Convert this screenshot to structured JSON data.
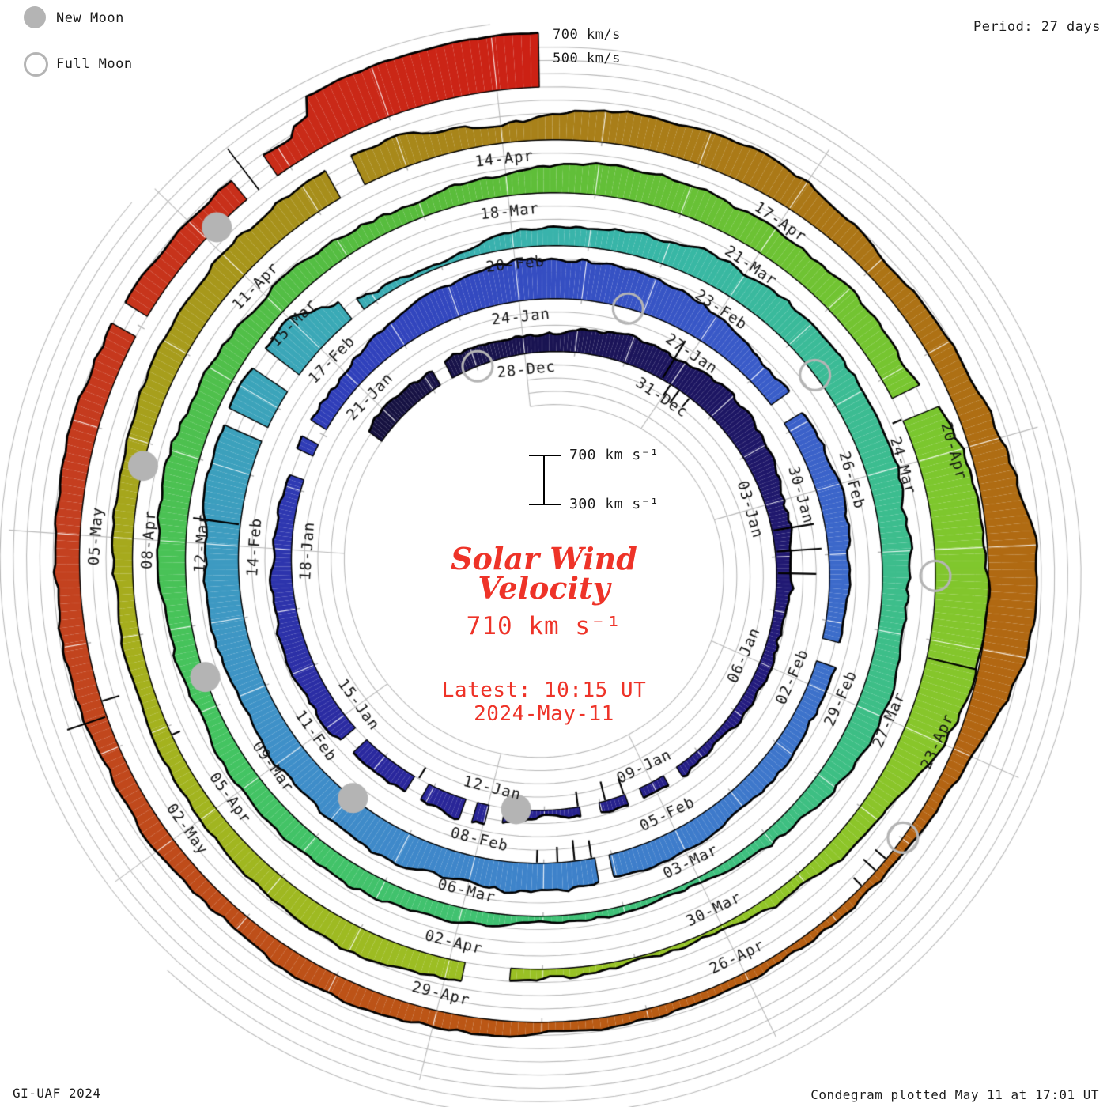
{
  "legend": {
    "new_moon": "New Moon",
    "full_moon": "Full Moon"
  },
  "header": {
    "period": "Period: 27 days",
    "outer_scale_700": "700 km/s",
    "outer_scale_500": "500 km/s"
  },
  "inner_scale": {
    "top": "700 km s⁻¹",
    "bottom": "300 km s⁻¹"
  },
  "center": {
    "title_line1": "Solar Wind",
    "title_line2": "Velocity",
    "current_value": "710 km s⁻¹",
    "latest_time": "Latest: 10:15 UT",
    "latest_date": "2024-May-11"
  },
  "footer": {
    "left": "GI-UAF 2024",
    "right": "Condegram plotted May 11 at 17:01 UT"
  },
  "colors": {
    "accent_red": "#ee3328",
    "moon_gray": "#b4b4b4",
    "grid_gray": "#b9b9b9",
    "tick_label": "#141414"
  },
  "chart_data": {
    "type": "polar-spiral-condegram",
    "title": "Solar Wind Velocity",
    "units": "km/s",
    "period_days": 27,
    "rotation_reference_date": "2023-12-28",
    "data_start": "2023-12-24T12:00",
    "data_end": "2024-05-11T10:15",
    "latest_value_kms": 710,
    "radial_scale": {
      "baseline_kms": 300,
      "top_kms": 700,
      "step_kms": 100
    },
    "angle_tick_step_days": 3,
    "angle_tick_labels": [
      "28-Dec",
      "31-Dec",
      "03-Jan",
      "06-Jan",
      "09-Jan",
      "12-Jan",
      "15-Jan",
      "18-Jan",
      "21-Jan",
      "24-Jan",
      "27-Jan",
      "30-Jan",
      "02-Feb",
      "05-Feb",
      "08-Feb",
      "11-Feb",
      "14-Feb",
      "17-Feb",
      "20-Feb",
      "23-Feb",
      "26-Feb",
      "29-Feb",
      "03-Mar",
      "06-Mar",
      "09-Mar",
      "12-Mar",
      "15-Mar",
      "18-Mar",
      "21-Mar",
      "24-Mar",
      "27-Mar",
      "30-Mar",
      "02-Apr",
      "05-Apr",
      "08-Apr",
      "11-Apr",
      "14-Apr",
      "17-Apr",
      "20-Apr",
      "23-Apr",
      "26-Apr",
      "29-Apr",
      "02-May",
      "05-May"
    ],
    "daily_velocity_kms": {
      "start_date": "2023-12-24",
      "values": [
        430,
        450,
        430,
        440,
        430,
        460,
        500,
        480,
        520,
        490,
        450,
        420,
        400,
        390,
        380,
        370,
        390,
        380,
        360,
        460,
        450,
        430,
        460,
        480,
        470,
        440,
        420,
        430,
        440,
        520,
        570,
        590,
        610,
        580,
        520,
        470,
        450,
        480,
        460,
        430,
        440,
        470,
        440,
        470,
        480,
        500,
        510,
        540,
        530,
        530,
        520,
        540,
        560,
        610,
        630,
        620,
        360,
        330,
        420,
        460,
        490,
        520,
        530,
        540,
        530,
        510,
        500,
        520,
        460,
        390,
        350,
        340,
        350,
        430,
        450,
        460,
        470,
        450,
        480,
        520,
        540,
        500,
        480,
        450,
        440,
        460,
        540,
        550,
        500,
        520,
        510,
        640,
        690,
        700,
        620,
        480,
        400,
        340,
        330,
        370,
        450,
        490,
        470,
        450,
        430,
        430,
        450,
        470,
        490,
        520,
        550,
        530,
        440,
        540,
        560,
        540,
        480,
        470,
        560,
        660,
        640,
        450,
        380,
        360,
        360,
        370,
        390,
        430,
        470,
        420,
        450,
        465,
        480,
        500,
        510,
        500,
        480,
        470,
        520,
        710
      ]
    },
    "data_gaps_days_from_ref": [
      [
        -1.8,
        -1.55
      ],
      [
        11.55,
        11.75
      ],
      [
        12.3,
        12.5
      ],
      [
        13.05,
        13.35
      ],
      [
        14.75,
        14.95
      ],
      [
        15.25,
        15.4
      ],
      [
        16.15,
        16.35
      ],
      [
        17.5,
        17.7
      ],
      [
        22.25,
        22.55
      ],
      [
        22.85,
        23.05
      ],
      [
        31.55,
        31.85
      ],
      [
        35.3,
        35.6
      ],
      [
        40.05,
        40.2
      ],
      [
        49.5,
        49.7
      ],
      [
        50.3,
        50.5
      ],
      [
        51.6,
        51.8
      ],
      [
        86.3,
        86.5
      ],
      [
        95.4,
        95.8
      ],
      [
        106.3,
        106.5
      ],
      [
        130.95,
        131.1
      ],
      [
        132.52,
        132.64
      ],
      [
        132.68,
        132.82
      ]
    ],
    "value_overrides_days_from_ref": [
      [
        132.64,
        132.68,
        690,
        705
      ],
      [
        133.2,
        133.35,
        545,
        565
      ],
      [
        133.35,
        135.427,
        695,
        712
      ]
    ],
    "spikes_up": [
      [
        2.8,
        640
      ],
      [
        6.5,
        620
      ],
      [
        6.9,
        650
      ],
      [
        7.3,
        600
      ],
      [
        48.3,
        660
      ],
      [
        89.2,
        690
      ],
      [
        127.3,
        615
      ]
    ],
    "spikes_down": [
      [
        3.0,
        200
      ],
      [
        3.2,
        180
      ],
      [
        3.45,
        210
      ],
      [
        12.55,
        170
      ],
      [
        12.9,
        150
      ],
      [
        13.4,
        180
      ],
      [
        16.3,
        200
      ],
      [
        40.3,
        160
      ],
      [
        40.55,
        140
      ],
      [
        40.8,
        180
      ],
      [
        41.1,
        200
      ],
      [
        86.5,
        220
      ],
      [
        99.9,
        230
      ],
      [
        118.25,
        190
      ],
      [
        118.4,
        170
      ],
      [
        118.6,
        210
      ],
      [
        127.45,
        160
      ]
    ],
    "moons": {
      "new": [
        {
          "date": "2024-01-11",
          "t": 14.5
        },
        {
          "date": "2024-02-09",
          "t": 43.96
        },
        {
          "date": "2024-03-10",
          "t": 73.37
        },
        {
          "date": "2024-04-08",
          "t": 102.76
        },
        {
          "date": "2024-05-08",
          "t": 132.14
        }
      ],
      "full": [
        {
          "date": "2023-12-27",
          "t": -0.98
        },
        {
          "date": "2024-01-25",
          "t": 28.75
        },
        {
          "date": "2024-02-24",
          "t": 58.52
        },
        {
          "date": "2024-03-25",
          "t": 88.29
        },
        {
          "date": "2024-04-23",
          "t": 117.99
        }
      ]
    },
    "colormap_stops_days_from_ref": [
      [
        -4,
        "#15113c"
      ],
      [
        3,
        "#1c155f"
      ],
      [
        10,
        "#241c80"
      ],
      [
        17,
        "#2a289e"
      ],
      [
        24,
        "#3040bb"
      ],
      [
        31,
        "#3a5cc9"
      ],
      [
        38,
        "#3e79cb"
      ],
      [
        45,
        "#3f8fc9"
      ],
      [
        52,
        "#3aacb4"
      ],
      [
        56,
        "#38b7a6"
      ],
      [
        59,
        "#3cbc93"
      ],
      [
        66,
        "#3ec07d"
      ],
      [
        73,
        "#44c45f"
      ],
      [
        80,
        "#58bc3c"
      ],
      [
        87,
        "#7cc72e"
      ],
      [
        94,
        "#97c426"
      ],
      [
        101,
        "#a6af1d"
      ],
      [
        108,
        "#a8821a"
      ],
      [
        115,
        "#b06a12"
      ],
      [
        122,
        "#ba5914"
      ],
      [
        129,
        "#c44020"
      ],
      [
        135.5,
        "#cc2014"
      ]
    ],
    "legend_note": "filled circle = new moon, open circle = full moon"
  }
}
